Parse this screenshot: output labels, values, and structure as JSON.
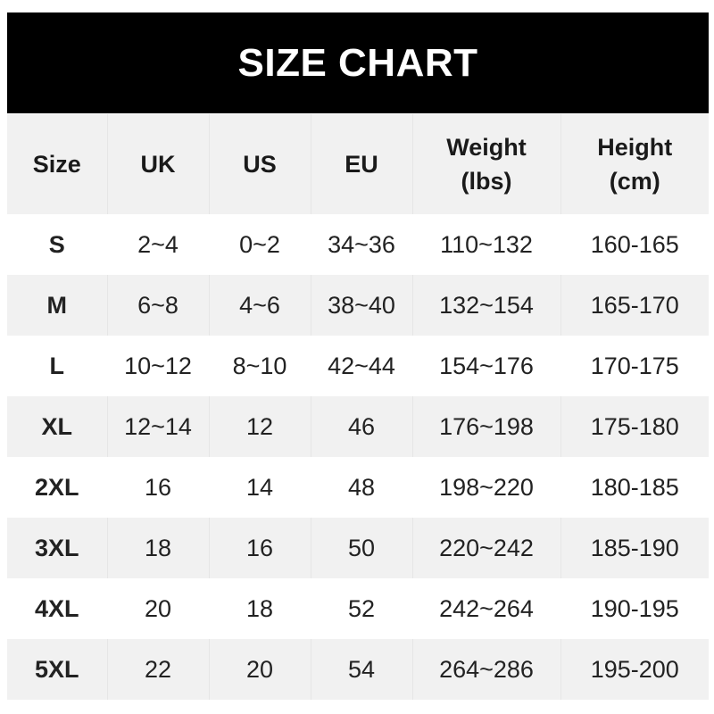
{
  "title": "SIZE CHART",
  "headers": [
    "Size",
    "UK",
    "US",
    "EU",
    "Weight\n(lbs)",
    "Height\n(cm)"
  ],
  "header_lines": [
    [
      "Size"
    ],
    [
      "UK"
    ],
    [
      "US"
    ],
    [
      "EU"
    ],
    [
      "Weight",
      "(lbs)"
    ],
    [
      "Height",
      "(cm)"
    ]
  ],
  "rows": [
    [
      "S",
      "2~4",
      "0~2",
      "34~36",
      "110~132",
      "160-165"
    ],
    [
      "M",
      "6~8",
      "4~6",
      "38~40",
      "132~154",
      "165-170"
    ],
    [
      "L",
      "10~12",
      "8~10",
      "42~44",
      "154~176",
      "170-175"
    ],
    [
      "XL",
      "12~14",
      "12",
      "46",
      "176~198",
      "175-180"
    ],
    [
      "2XL",
      "16",
      "14",
      "48",
      "198~220",
      "180-185"
    ],
    [
      "3XL",
      "18",
      "16",
      "50",
      "220~242",
      "185-190"
    ],
    [
      "4XL",
      "20",
      "18",
      "52",
      "242~264",
      "190-195"
    ],
    [
      "5XL",
      "22",
      "20",
      "54",
      "264~286",
      "195-200"
    ]
  ],
  "colors": {
    "banner": "#000000",
    "banner_text": "#ffffff",
    "stripe": "#f1f1f1"
  }
}
